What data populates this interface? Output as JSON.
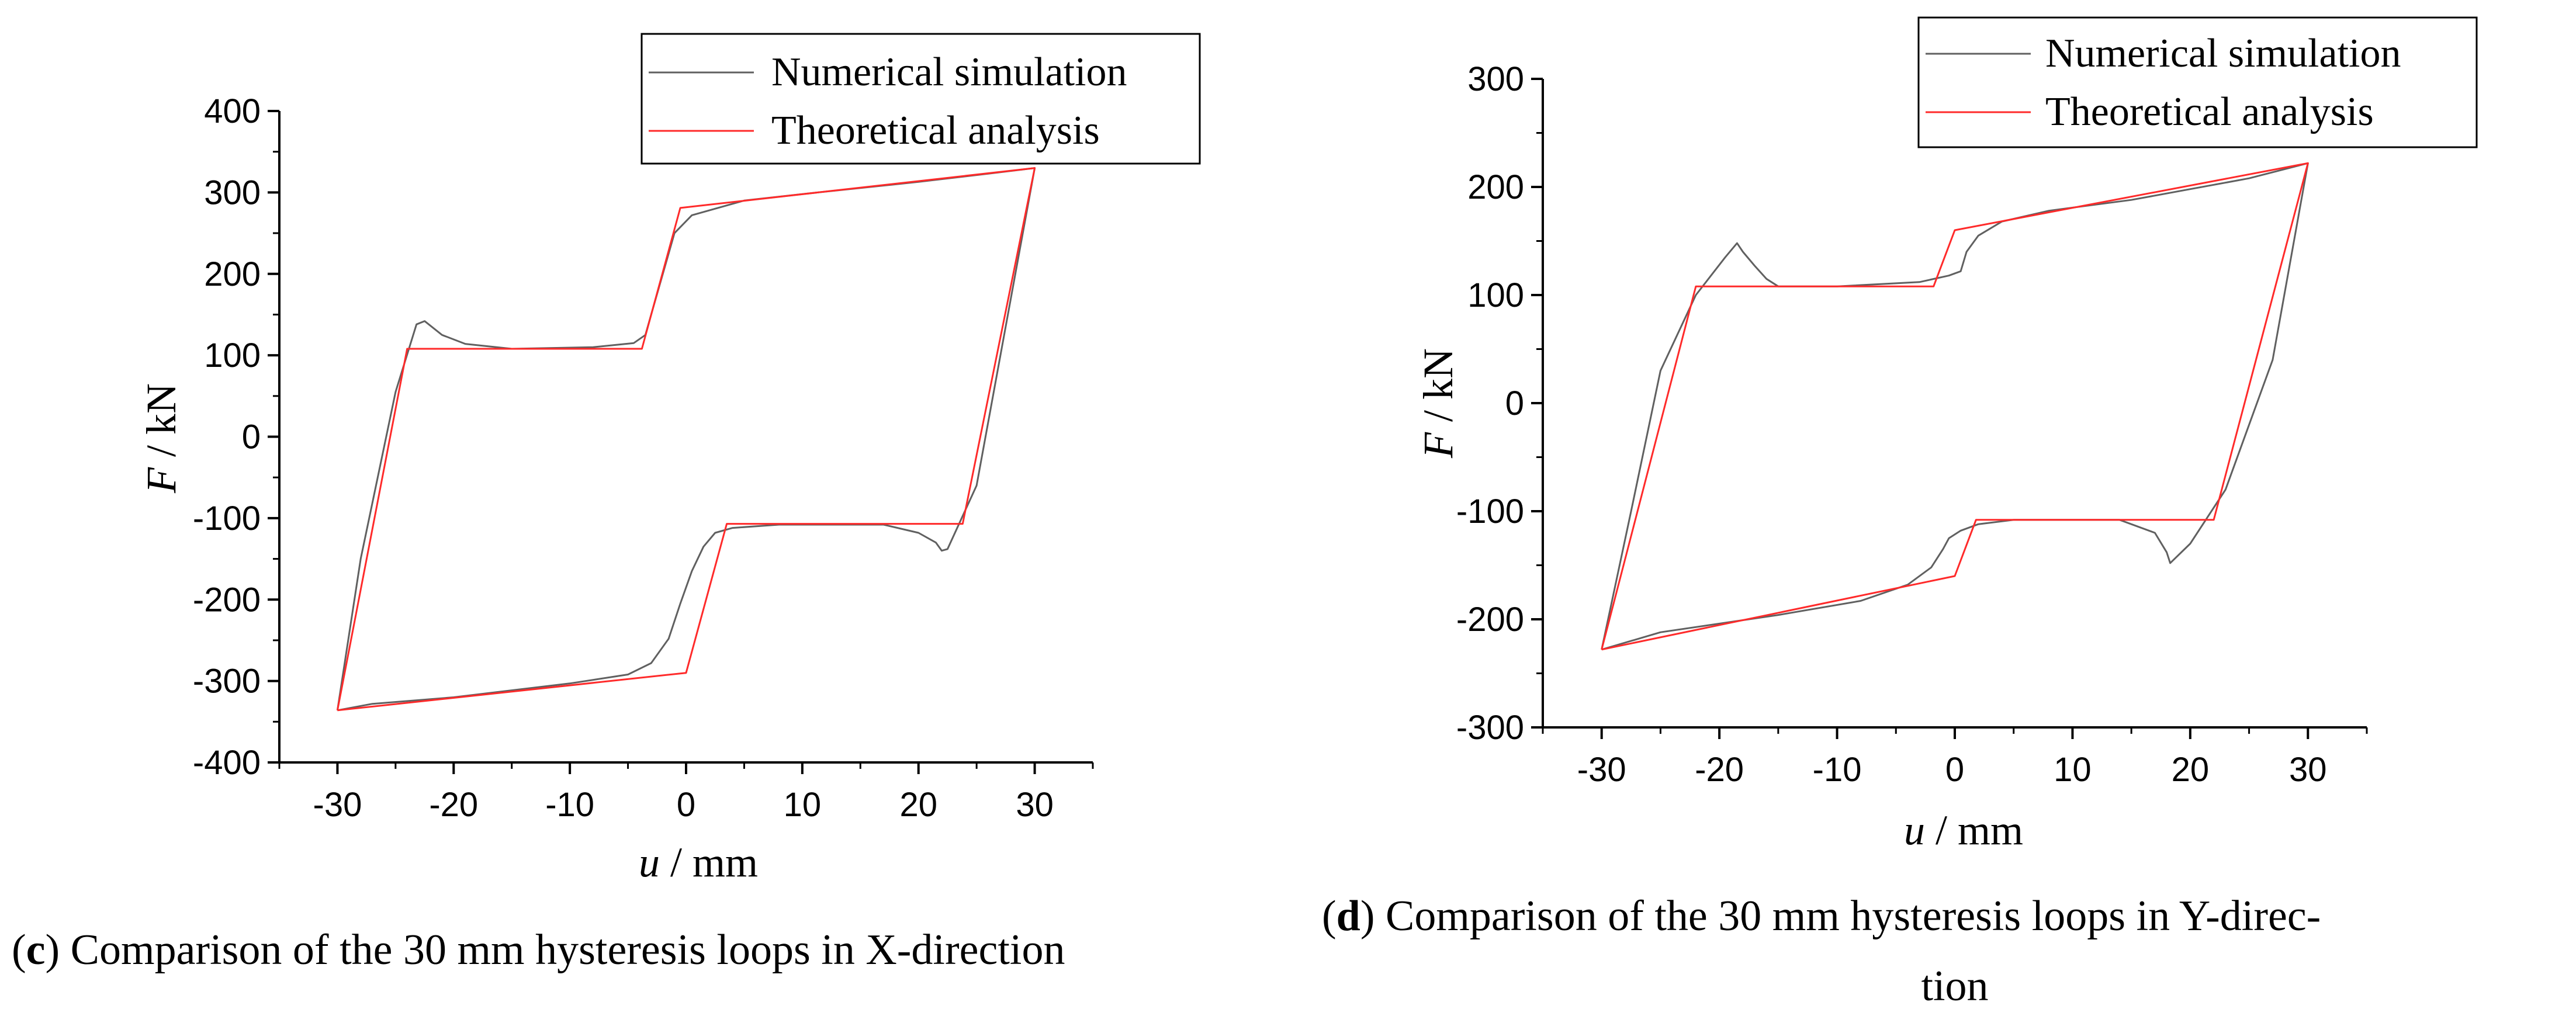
{
  "chart_data": [
    {
      "type": "line",
      "id": "c",
      "caption_letter": "c",
      "caption_text": ") Comparison of the 30 mm hysteresis loops in X-direction",
      "ylabel_var": "F",
      "ylabel_unit": " / kN",
      "xlabel_var": "u",
      "xlabel_unit": " / mm",
      "xlim": [
        -35,
        35
      ],
      "ylim": [
        -400,
        400
      ],
      "xticks": [
        -30,
        -20,
        -10,
        0,
        10,
        20,
        30
      ],
      "yticks": [
        -400,
        -300,
        -200,
        -100,
        0,
        100,
        200,
        300,
        400
      ],
      "legend": [
        "Numerical simulation",
        "Theoretical analysis"
      ],
      "legend_position": "top-right",
      "series": [
        {
          "name": "Numerical simulation",
          "color": "#606060",
          "points": [
            [
              -30,
              -336
            ],
            [
              -27,
              -328
            ],
            [
              -20,
              -320
            ],
            [
              -10,
              -303
            ],
            [
              -5,
              -292
            ],
            [
              -3,
              -278
            ],
            [
              -1.5,
              -248
            ],
            [
              -0.5,
              -205
            ],
            [
              0.5,
              -165
            ],
            [
              1.5,
              -135
            ],
            [
              2.5,
              -118
            ],
            [
              4,
              -112
            ],
            [
              8,
              -108
            ],
            [
              17,
              -108
            ],
            [
              20,
              -118
            ],
            [
              21.5,
              -130
            ],
            [
              22,
              -140
            ],
            [
              22.5,
              -138
            ],
            [
              25,
              -60
            ],
            [
              30,
              330
            ],
            [
              26,
              323
            ],
            [
              20,
              313
            ],
            [
              10,
              298
            ],
            [
              5,
              290
            ],
            [
              0.5,
              272
            ],
            [
              -1,
              250
            ],
            [
              -2,
              200
            ],
            [
              -3,
              150
            ],
            [
              -3.5,
              125
            ],
            [
              -4.5,
              115
            ],
            [
              -8,
              110
            ],
            [
              -15,
              108
            ],
            [
              -19,
              114
            ],
            [
              -21,
              125
            ],
            [
              -22.5,
              142
            ],
            [
              -23.2,
              138
            ],
            [
              -25,
              55
            ],
            [
              -28,
              -150
            ],
            [
              -30,
              -336
            ]
          ]
        },
        {
          "name": "Theoretical analysis",
          "color": "#ff2a2a",
          "points": [
            [
              -30,
              -336
            ],
            [
              0,
              -290
            ],
            [
              3.5,
              -107
            ],
            [
              23.8,
              -107
            ],
            [
              30,
              330
            ],
            [
              -0.5,
              281
            ],
            [
              -3.8,
              108
            ],
            [
              -24,
              108
            ],
            [
              -30,
              -336
            ]
          ]
        }
      ]
    },
    {
      "type": "line",
      "id": "d",
      "caption_letter": "d",
      "caption_line1": ") Comparison of the 30 mm hysteresis loops in Y-direc-",
      "caption_line2": "tion",
      "ylabel_var": "F",
      "ylabel_unit": " / kN",
      "xlabel_var": "u",
      "xlabel_unit": " / mm",
      "xlim": [
        -35,
        35
      ],
      "ylim": [
        -300,
        300
      ],
      "xticks": [
        -30,
        -20,
        -10,
        0,
        10,
        20,
        30
      ],
      "yticks": [
        -300,
        -200,
        -100,
        0,
        100,
        200,
        300
      ],
      "legend": [
        "Numerical simulation",
        "Theoretical analysis"
      ],
      "legend_position": "top-right",
      "series": [
        {
          "name": "Numerical simulation",
          "color": "#606060",
          "points": [
            [
              -30,
              -228
            ],
            [
              -25,
              -212
            ],
            [
              -15,
              -196
            ],
            [
              -8,
              -183
            ],
            [
              -4,
              -168
            ],
            [
              -2,
              -152
            ],
            [
              -1,
              -135
            ],
            [
              -0.5,
              -125
            ],
            [
              0.5,
              -118
            ],
            [
              2,
              -112
            ],
            [
              5,
              -108
            ],
            [
              14,
              -108
            ],
            [
              17,
              -120
            ],
            [
              18,
              -138
            ],
            [
              18.3,
              -148
            ],
            [
              20,
              -130
            ],
            [
              23,
              -80
            ],
            [
              27,
              40
            ],
            [
              30,
              222
            ],
            [
              25,
              208
            ],
            [
              20,
              198
            ],
            [
              15,
              188
            ],
            [
              8,
              178
            ],
            [
              4,
              168
            ],
            [
              2,
              155
            ],
            [
              1,
              140
            ],
            [
              0.5,
              122
            ],
            [
              -0.5,
              118
            ],
            [
              -3,
              112
            ],
            [
              -10,
              108
            ],
            [
              -15,
              108
            ],
            [
              -16,
              115
            ],
            [
              -17,
              127
            ],
            [
              -18,
              140
            ],
            [
              -18.5,
              148
            ],
            [
              -19.5,
              135
            ],
            [
              -22,
              100
            ],
            [
              -25,
              30
            ],
            [
              -27.5,
              -100
            ],
            [
              -30,
              -228
            ]
          ]
        },
        {
          "name": "Theoretical analysis",
          "color": "#ff2a2a",
          "points": [
            [
              -30,
              -228
            ],
            [
              0,
              -160
            ],
            [
              1.8,
              -108
            ],
            [
              22,
              -108
            ],
            [
              30,
              222
            ],
            [
              0,
              160
            ],
            [
              -1.8,
              108
            ],
            [
              -22,
              108
            ],
            [
              -30,
              -228
            ]
          ]
        }
      ]
    }
  ]
}
